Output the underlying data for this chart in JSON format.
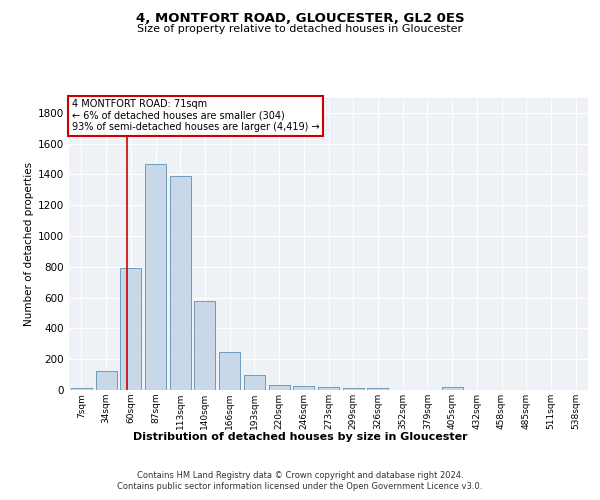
{
  "title1": "4, MONTFORT ROAD, GLOUCESTER, GL2 0ES",
  "title2": "Size of property relative to detached houses in Gloucester",
  "xlabel": "Distribution of detached houses by size in Gloucester",
  "ylabel": "Number of detached properties",
  "bar_color": "#c8d8e8",
  "bar_edge_color": "#6090b0",
  "categories": [
    "7sqm",
    "34sqm",
    "60sqm",
    "87sqm",
    "113sqm",
    "140sqm",
    "166sqm",
    "193sqm",
    "220sqm",
    "246sqm",
    "273sqm",
    "299sqm",
    "326sqm",
    "352sqm",
    "379sqm",
    "405sqm",
    "432sqm",
    "458sqm",
    "485sqm",
    "511sqm",
    "538sqm"
  ],
  "values": [
    10,
    125,
    790,
    1470,
    1390,
    575,
    250,
    100,
    35,
    25,
    18,
    12,
    15,
    0,
    0,
    18,
    0,
    0,
    0,
    0,
    0
  ],
  "ylim": [
    0,
    1900
  ],
  "yticks": [
    0,
    200,
    400,
    600,
    800,
    1000,
    1200,
    1400,
    1600,
    1800
  ],
  "annotation_text": "4 MONTFORT ROAD: 71sqm\n← 6% of detached houses are smaller (304)\n93% of semi-detached houses are larger (4,419) →",
  "annotation_box_color": "#ffffff",
  "annotation_box_edge": "#cc0000",
  "red_line_color": "#cc0000",
  "footer1": "Contains HM Land Registry data © Crown copyright and database right 2024.",
  "footer2": "Contains public sector information licensed under the Open Government Licence v3.0.",
  "bg_color": "#eef2f7",
  "grid_color": "#ffffff"
}
